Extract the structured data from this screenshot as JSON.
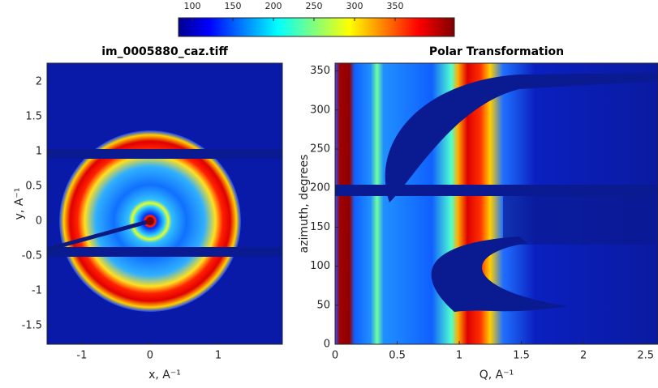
{
  "chart_data": [
    {
      "type": "colorbar",
      "colormap": "jet",
      "xlim": [
        83,
        423
      ],
      "xticks": [
        100,
        150,
        200,
        250,
        300,
        350
      ]
    },
    {
      "type": "heatmap",
      "title": "im_0005880_caz.tiff",
      "xlabel": "x, A⁻¹",
      "ylabel": "y, A⁻¹",
      "colormap": "jet",
      "xlim": [
        -1.51,
        1.94
      ],
      "ylim": [
        -1.77,
        2.27
      ],
      "xticks": [
        -1,
        0,
        1
      ],
      "yticks": [
        -1.5,
        -1,
        -0.5,
        0,
        0.5,
        1,
        1.5,
        2
      ]
    },
    {
      "type": "heatmap",
      "title": "Polar Transformation",
      "xlabel": "Q, A⁻¹",
      "ylabel": "azimuth, degrees",
      "colormap": "jet",
      "xlim": [
        0,
        2.6
      ],
      "ylim": [
        0,
        360
      ],
      "xticks": [
        0,
        0.5,
        1,
        1.5,
        2,
        2.5
      ],
      "yticks": [
        0,
        50,
        100,
        150,
        200,
        250,
        300,
        350
      ]
    }
  ]
}
